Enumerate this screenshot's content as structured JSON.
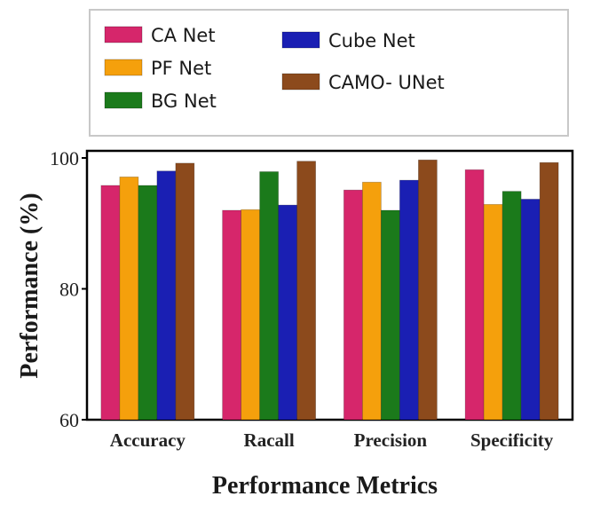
{
  "chart_data": {
    "type": "bar",
    "categories": [
      "Accuracy",
      "Racall",
      "Precision",
      "Specificity"
    ],
    "series": [
      {
        "name": "CA Net",
        "color": "#d6266b",
        "values": [
          95.8,
          92.0,
          95.1,
          98.2
        ]
      },
      {
        "name": "PF Net",
        "color": "#f5a00c",
        "values": [
          97.1,
          92.1,
          96.3,
          92.9
        ]
      },
      {
        "name": "BG Net",
        "color": "#1b7a1b",
        "values": [
          95.8,
          97.9,
          92.0,
          94.9
        ]
      },
      {
        "name": "Cube Net",
        "color": "#1a1fb3",
        "values": [
          98.0,
          92.8,
          96.6,
          93.7
        ]
      },
      {
        "name": "CAMO- UNet",
        "color": "#8c4a1c",
        "values": [
          99.2,
          99.5,
          99.7,
          99.3
        ]
      }
    ],
    "xlabel": "Performance Metrics",
    "ylabel": "Performance (%)",
    "ylim": [
      60,
      100
    ],
    "yticks": [
      "60",
      "80",
      "100"
    ],
    "grid": false,
    "legend_position": "top"
  }
}
